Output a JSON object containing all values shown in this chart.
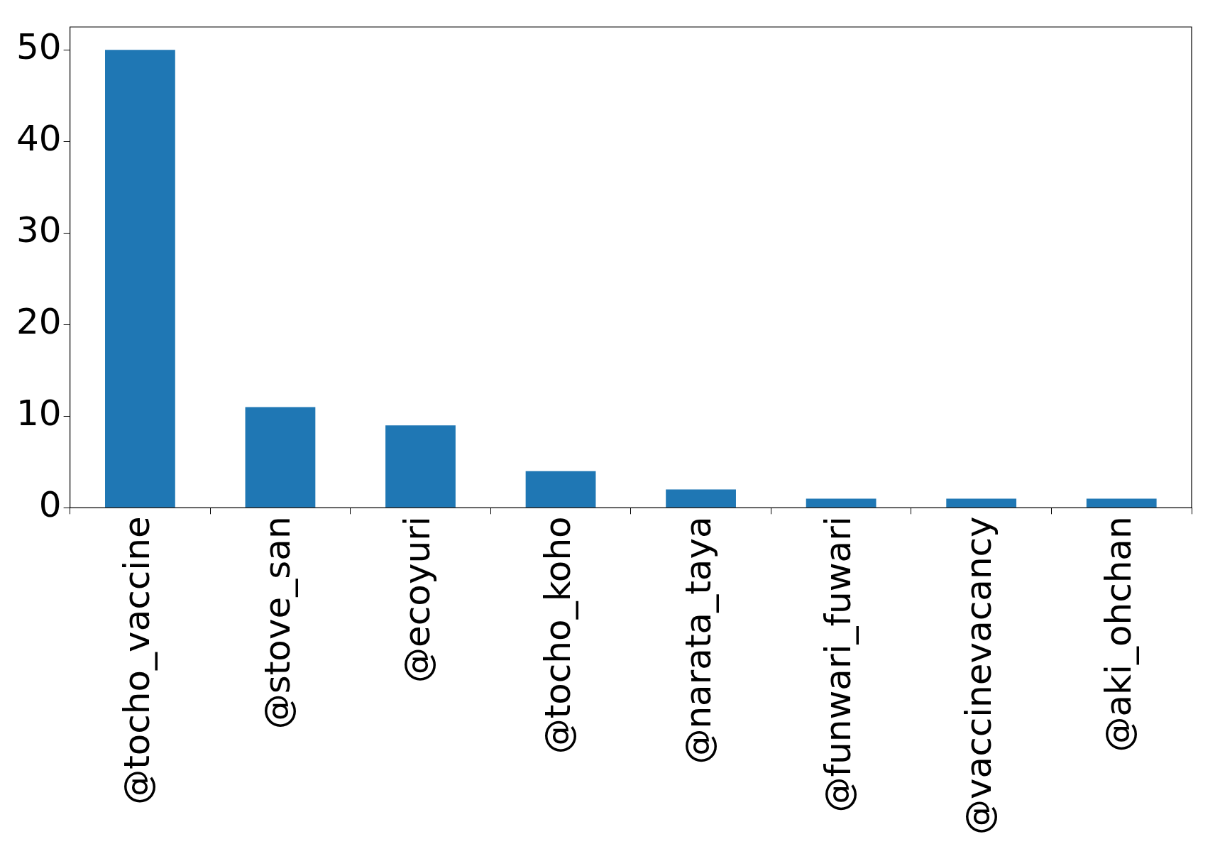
{
  "chart_data": {
    "type": "bar",
    "categories": [
      "@tocho_vaccine",
      "@stove_san",
      "@ecoyuri",
      "@tocho_koho",
      "@narata_taya",
      "@funwari_fuwari",
      "@vaccinevacancy",
      "@aki_ohchan"
    ],
    "values": [
      50,
      11,
      9,
      4,
      2,
      1,
      1,
      1
    ],
    "color": "#1f77b4",
    "ylim": [
      0,
      52.5
    ],
    "yticks": [
      0,
      10,
      20,
      30,
      40,
      50
    ],
    "grid": false,
    "legend": false
  }
}
